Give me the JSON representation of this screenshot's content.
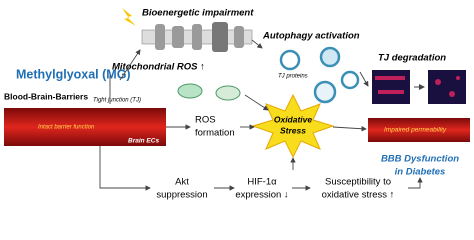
{
  "nodes": {
    "bioenergetic": "Bioenergetic impairment",
    "autophagy": "Autophagy activation",
    "mg": "Methylglyoxal (MG)",
    "mito_ros": "Mitochondrial ROS ↑",
    "tj_degradation": "TJ degradation",
    "bbb": "Blood-Brain-Barriers",
    "tight_junction": "Tight junction (TJ)",
    "tj_proteins": "TJ proteins",
    "intact": "Intact barrier function",
    "brain_ecs": "Brain ECs",
    "ros_formation": [
      "ROS",
      "formation"
    ],
    "oxidative_stress": [
      "Oxidative",
      "Stress"
    ],
    "impaired": "Impaired permeability",
    "dysfunction": [
      "BBB Dysfunction",
      "in Diabetes"
    ],
    "akt": [
      "Akt",
      "suppression"
    ],
    "hif": [
      "HIF-1α",
      "expression ↓"
    ],
    "susceptibility": [
      "Susceptibility to",
      "oxidative stress ↑"
    ]
  }
}
